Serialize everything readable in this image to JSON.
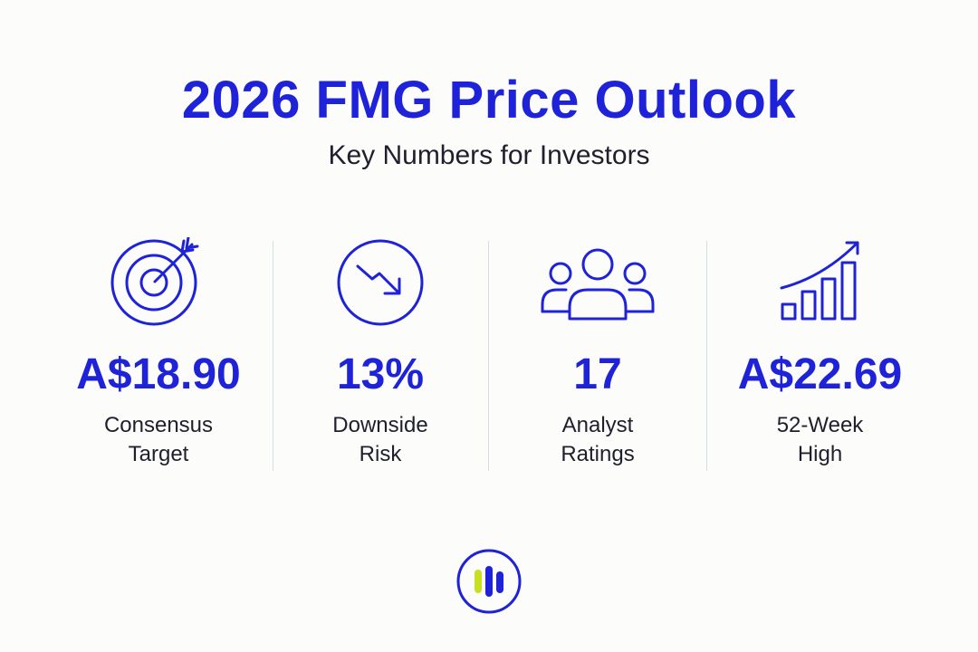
{
  "header": {
    "title": "2026 FMG Price Outlook",
    "subtitle": "Key Numbers for Investors"
  },
  "stats": [
    {
      "icon": "target-arrow-icon",
      "value": "A$18.90",
      "label_line1": "Consensus",
      "label_line2": "Target"
    },
    {
      "icon": "trending-down-circle-icon",
      "value": "13%",
      "label_line1": "Downside",
      "label_line2": "Risk"
    },
    {
      "icon": "group-people-icon",
      "value": "17",
      "label_line1": "Analyst",
      "label_line2": "Ratings"
    },
    {
      "icon": "bar-growth-arrow-icon",
      "value": "A$22.69",
      "label_line1": "52-Week",
      "label_line2": "High"
    }
  ],
  "colors": {
    "accent": "#1e22d8",
    "text": "#1f1f2e",
    "logo_bar": "#c8e021",
    "divider": "#d6ddea"
  }
}
